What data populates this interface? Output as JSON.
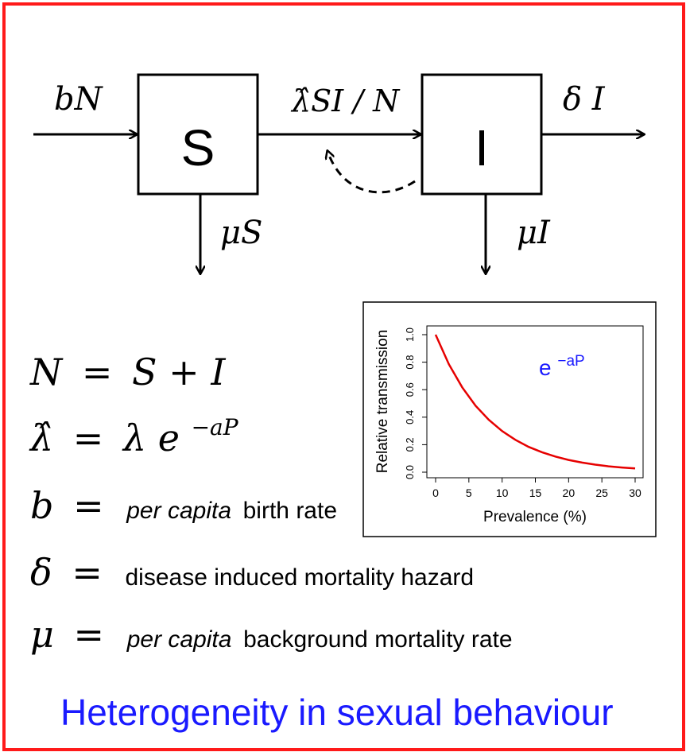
{
  "diagram": {
    "box_s": "S",
    "box_i": "I",
    "inflow_label": "bN",
    "transmission_label": "λ̂SI / N",
    "outflow_delta_label": "δ I",
    "mortality_s_label": "μS",
    "mortality_i_label": "μI"
  },
  "equations": {
    "eq_n": {
      "lhs": "N",
      "op": "=",
      "rhs": "S + I"
    },
    "eq_lambda": {
      "lhs": "λ̂",
      "op": "=",
      "rhs_base": "λ e",
      "rhs_exp": "−aP"
    },
    "def_b": {
      "sym": "b",
      "op": "=",
      "text_italic": "per capita",
      "text": " birth rate"
    },
    "def_delta": {
      "sym": "δ",
      "op": "=",
      "text": "disease induced mortality hazard"
    },
    "def_mu": {
      "sym": "μ",
      "op": "=",
      "text_italic": "per capita",
      "text": " background mortality rate"
    }
  },
  "caption": "Heterogeneity in sexual behaviour",
  "colors": {
    "frame": "#ff1a1a",
    "caption": "#1a1aff",
    "curve": "#e60000",
    "annotation": "#1a1aff"
  },
  "chart_data": {
    "type": "line",
    "xlabel": "Prevalence (%)",
    "ylabel": "Relative transmission",
    "annotation_base": "e",
    "annotation_exp": "−aP",
    "xlim": [
      0,
      30
    ],
    "ylim": [
      0,
      1
    ],
    "xticks": [
      0,
      5,
      10,
      15,
      20,
      25,
      30
    ],
    "yticks": [
      0.0,
      0.2,
      0.4,
      0.6,
      0.8,
      1.0
    ],
    "ytick_labels": [
      "0.0",
      "0.2",
      "0.4",
      "0.6",
      "0.8",
      "1.0"
    ],
    "series": [
      {
        "x": [
          0,
          2,
          4,
          6,
          8,
          10,
          12,
          14,
          16,
          18,
          20,
          22,
          24,
          26,
          28,
          30
        ],
        "values": [
          1.0,
          0.785,
          0.617,
          0.484,
          0.381,
          0.299,
          0.235,
          0.184,
          0.145,
          0.114,
          0.089,
          0.07,
          0.055,
          0.043,
          0.034,
          0.027
        ]
      }
    ]
  }
}
